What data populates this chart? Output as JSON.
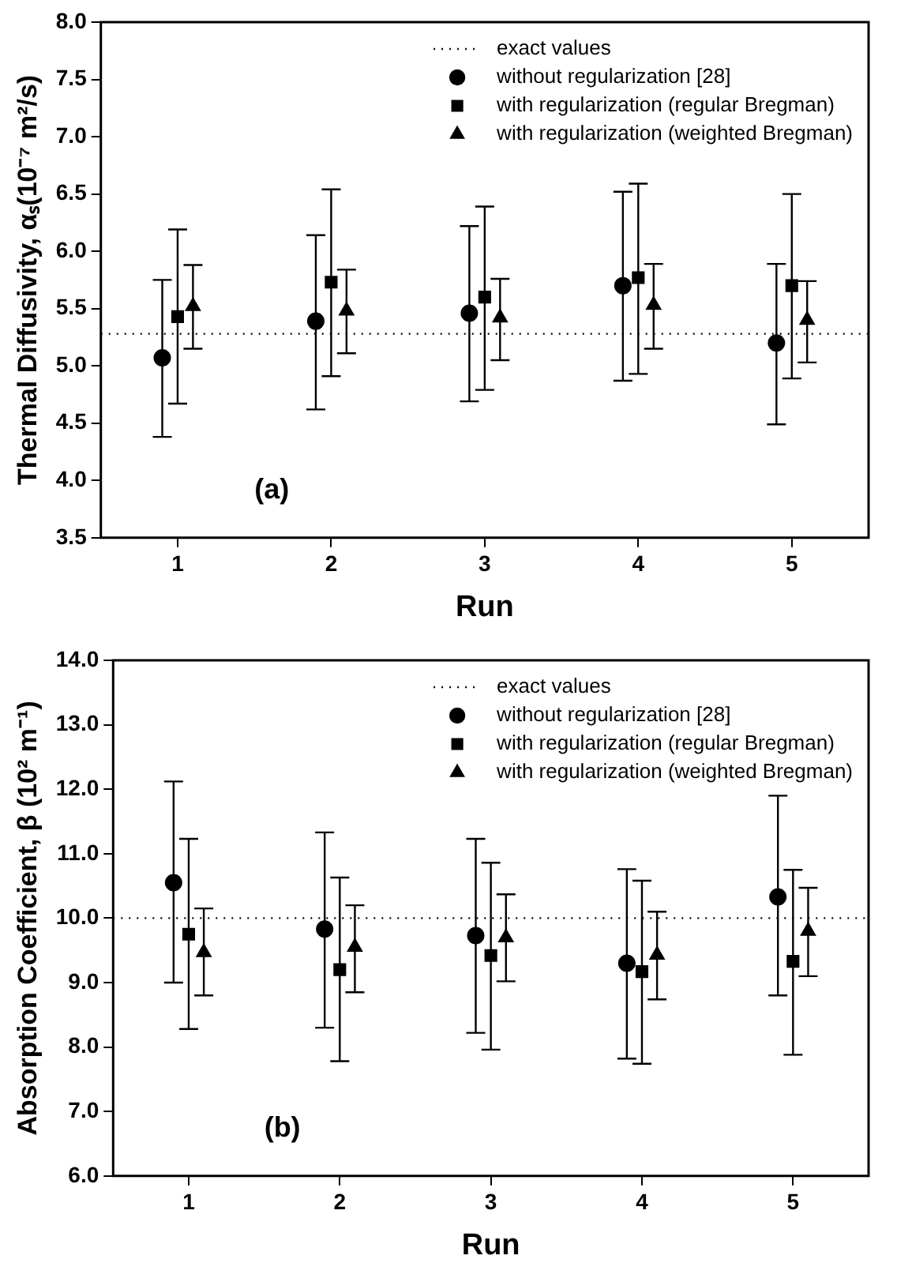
{
  "chart_data": [
    {
      "type": "scatter",
      "xlabel": "Run",
      "ylabel": "Thermal Diffusivity, αₛ(10⁻⁷ m²/s)",
      "annotations": [
        "(a)"
      ],
      "legend": "top right",
      "grid": false,
      "xlim": [
        0.5,
        5.5
      ],
      "xticks": [
        1,
        2,
        3,
        4,
        5
      ],
      "ylim": [
        3.5,
        8.0
      ],
      "yticks": [
        {
          "value": 3.5,
          "label": "3.5"
        },
        {
          "value": 4,
          "label": "4.0"
        },
        {
          "value": 4.5,
          "label": "4.5"
        },
        {
          "value": 5,
          "label": "5.0"
        },
        {
          "value": 5.5,
          "label": "5.5"
        },
        {
          "value": 6,
          "label": "6.0"
        },
        {
          "value": 6.5,
          "label": "6.5"
        },
        {
          "value": 7,
          "label": "7.0"
        },
        {
          "value": 7.5,
          "label": "7.5"
        },
        {
          "value": 8,
          "label": "8.0"
        }
      ],
      "series": [
        {
          "name": "exact values",
          "type": "line",
          "color": "#000000",
          "line_style": "dotted",
          "marker": "none",
          "x": [
            0.5,
            5.5
          ],
          "values": [
            5.28,
            5.28
          ]
        },
        {
          "name": "without regularization [28]",
          "color": "#000000",
          "marker": "circle",
          "x": [
            0.9,
            1.9,
            2.9,
            3.9,
            4.9
          ],
          "values": [
            5.07,
            5.39,
            5.46,
            5.7,
            5.2
          ],
          "errors": [
            [
              4.38,
              5.75
            ],
            [
              4.62,
              6.14
            ],
            [
              4.69,
              6.22
            ],
            [
              4.87,
              6.52
            ],
            [
              4.49,
              5.89
            ]
          ]
        },
        {
          "name": "with regularization (regular Bregman)",
          "color": "#000000",
          "marker": "square",
          "x": [
            1,
            2,
            3,
            4,
            5
          ],
          "values": [
            5.43,
            5.73,
            5.6,
            5.77,
            5.7
          ],
          "errors": [
            [
              4.67,
              6.19
            ],
            [
              4.91,
              6.54
            ],
            [
              4.79,
              6.39
            ],
            [
              4.93,
              6.59
            ],
            [
              4.89,
              6.5
            ]
          ]
        },
        {
          "name": "with regularization (weighted Bregman)",
          "color": "#000000",
          "marker": "triangle",
          "x": [
            1.1,
            2.1,
            3.1,
            4.1,
            5.1
          ],
          "values": [
            5.52,
            5.48,
            5.42,
            5.53,
            5.4
          ],
          "errors": [
            [
              5.15,
              5.88
            ],
            [
              5.11,
              5.84
            ],
            [
              5.05,
              5.76
            ],
            [
              5.15,
              5.89
            ],
            [
              5.03,
              5.74
            ]
          ]
        }
      ]
    },
    {
      "type": "scatter",
      "xlabel": "Run",
      "ylabel": "Absorption Coefficient, β (10² m⁻¹)",
      "annotations": [
        "(b)"
      ],
      "legend": "top right",
      "grid": false,
      "xlim": [
        0.5,
        5.5
      ],
      "xticks": [
        1,
        2,
        3,
        4,
        5
      ],
      "ylim": [
        6.0,
        14.0
      ],
      "yticks": [
        {
          "value": 6,
          "label": "6.0"
        },
        {
          "value": 7,
          "label": "7.0"
        },
        {
          "value": 8,
          "label": "8.0"
        },
        {
          "value": 9,
          "label": "9.0"
        },
        {
          "value": 10,
          "label": "10.0"
        },
        {
          "value": 11,
          "label": "11.0"
        },
        {
          "value": 12,
          "label": "12.0"
        },
        {
          "value": 13,
          "label": "13.0"
        },
        {
          "value": 14,
          "label": "14.0"
        }
      ],
      "series": [
        {
          "name": "exact values",
          "type": "line",
          "color": "#000000",
          "line_style": "dotted",
          "marker": "none",
          "x": [
            0.5,
            5.5
          ],
          "values": [
            10.0,
            10.0
          ]
        },
        {
          "name": "without regularization [28]",
          "color": "#000000",
          "marker": "circle",
          "x": [
            0.9,
            1.9,
            2.9,
            3.9,
            4.9
          ],
          "values": [
            10.55,
            9.83,
            9.73,
            9.3,
            10.33
          ],
          "errors": [
            [
              9.0,
              12.12
            ],
            [
              8.3,
              11.33
            ],
            [
              8.22,
              11.23
            ],
            [
              7.82,
              10.76
            ],
            [
              8.8,
              11.9
            ]
          ]
        },
        {
          "name": "with regularization (regular Bregman)",
          "color": "#000000",
          "marker": "square",
          "x": [
            1,
            2,
            3,
            4,
            5
          ],
          "values": [
            9.75,
            9.2,
            9.42,
            9.17,
            9.33
          ],
          "errors": [
            [
              8.28,
              11.23
            ],
            [
              7.78,
              10.63
            ],
            [
              7.96,
              10.86
            ],
            [
              7.74,
              10.58
            ],
            [
              7.88,
              10.75
            ]
          ]
        },
        {
          "name": "with regularization (weighted Bregman)",
          "color": "#000000",
          "marker": "triangle",
          "x": [
            1.1,
            2.1,
            3.1,
            4.1,
            5.1
          ],
          "values": [
            9.47,
            9.55,
            9.7,
            9.43,
            9.8
          ],
          "errors": [
            [
              8.8,
              10.15
            ],
            [
              8.85,
              10.2
            ],
            [
              9.02,
              10.37
            ],
            [
              8.74,
              10.1
            ],
            [
              9.1,
              10.47
            ]
          ]
        }
      ]
    }
  ]
}
